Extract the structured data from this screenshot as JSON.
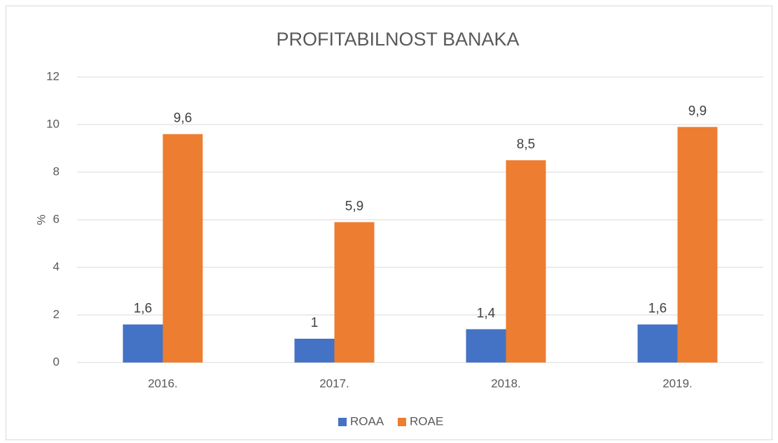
{
  "chart_data": {
    "type": "bar",
    "title": "PROFITABILNOST BANAKA",
    "y_label": "%",
    "categories": [
      "2016.",
      "2017.",
      "2018.",
      "2019."
    ],
    "series": [
      {
        "name": "ROAA",
        "color": "#4472c4",
        "values": [
          1.6,
          1,
          1.4,
          1.6
        ],
        "value_labels": [
          "1,6",
          "1",
          "1,4",
          "1,6"
        ]
      },
      {
        "name": "ROAE",
        "color": "#ed7d31",
        "values": [
          9.6,
          5.9,
          8.5,
          9.9
        ],
        "value_labels": [
          "9,6",
          "5,9",
          "8,5",
          "9,9"
        ]
      }
    ],
    "ylim": [
      0,
      12
    ],
    "yticks": [
      0,
      2,
      4,
      6,
      8,
      10,
      12
    ],
    "grid": true,
    "legend": "bottom"
  }
}
